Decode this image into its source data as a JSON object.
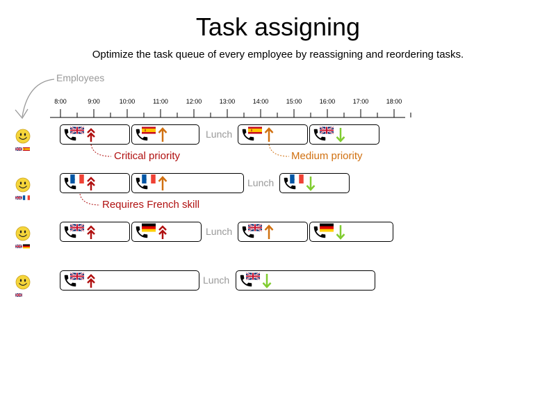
{
  "title": "Task assigning",
  "subtitle": "Optimize the task queue of every employee by reassigning and reordering tasks.",
  "employees_label": "Employees",
  "time_ticks": [
    "8:00",
    "9:00",
    "10:00",
    "11:00",
    "12:00",
    "13:00",
    "14:00",
    "15:00",
    "16:00",
    "17:00",
    "18:00"
  ],
  "lunch_label": "Lunch",
  "callouts": {
    "critical": "Critical priority",
    "medium": "Medium priority",
    "french": "Requires French skill"
  },
  "colors": {
    "critical": "#b01010",
    "medium": "#d07010",
    "low": "#80cc30",
    "muted": "#999999"
  },
  "employees": [
    {
      "skills": [
        "gb",
        "es"
      ],
      "tasks": [
        {
          "flag": "gb",
          "priority": "critical"
        },
        {
          "flag": "es",
          "priority": "medium"
        },
        {
          "flag": "es",
          "priority": "medium"
        },
        {
          "flag": "gb",
          "priority": "low"
        }
      ]
    },
    {
      "skills": [
        "gb",
        "fr"
      ],
      "tasks": [
        {
          "flag": "fr",
          "priority": "critical"
        },
        {
          "flag": "fr",
          "priority": "medium"
        },
        {
          "flag": "fr",
          "priority": "low"
        }
      ]
    },
    {
      "skills": [
        "gb",
        "de"
      ],
      "tasks": [
        {
          "flag": "gb",
          "priority": "critical"
        },
        {
          "flag": "de",
          "priority": "critical"
        },
        {
          "flag": "gb",
          "priority": "medium"
        },
        {
          "flag": "de",
          "priority": "low"
        }
      ]
    },
    {
      "skills": [
        "gb"
      ],
      "tasks": [
        {
          "flag": "gb",
          "priority": "critical"
        },
        {
          "flag": "gb",
          "priority": "low"
        }
      ]
    }
  ]
}
